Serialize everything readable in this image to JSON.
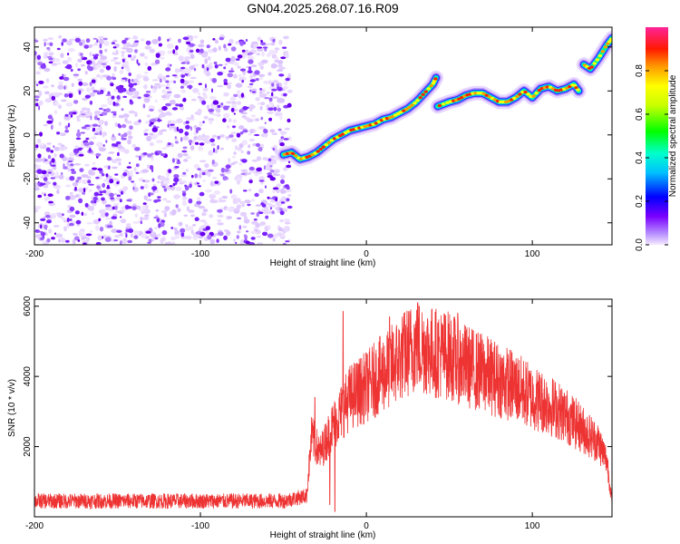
{
  "figure_title": "GN04.2025.268.07.16.R09",
  "chart_data": [
    {
      "type": "heatmap",
      "xlabel": "Height of straight line (km)",
      "ylabel": "Frequency (Hz)",
      "xlim": [
        -200,
        148
      ],
      "ylim": [
        -50,
        49
      ],
      "xticks": [
        -200,
        -100,
        0,
        100
      ],
      "yticks": [
        -40,
        -20,
        0,
        20,
        40
      ],
      "colorbar": {
        "label": "Normalized spectral amplitude",
        "range": [
          0,
          1
        ],
        "ticks": [
          0.0,
          0.2,
          0.4,
          0.6,
          0.8
        ],
        "tick_labels": [
          "0.0",
          "0.2",
          "0.4",
          "0.6",
          "0.8"
        ],
        "colormap": "rainbow (purple-blue-cyan-green-yellow-orange-red-pink)"
      },
      "noise_region_x": [
        -200,
        -46
      ],
      "ridge": [
        {
          "x": -50,
          "y": -9
        },
        {
          "x": -45,
          "y": -8
        },
        {
          "x": -40,
          "y": -11
        },
        {
          "x": -35,
          "y": -10
        },
        {
          "x": -30,
          "y": -8
        },
        {
          "x": -25,
          "y": -5
        },
        {
          "x": -20,
          "y": -2
        },
        {
          "x": -15,
          "y": 0
        },
        {
          "x": -10,
          "y": 2
        },
        {
          "x": -5,
          "y": 3
        },
        {
          "x": 0,
          "y": 4
        },
        {
          "x": 5,
          "y": 5
        },
        {
          "x": 10,
          "y": 7
        },
        {
          "x": 15,
          "y": 8
        },
        {
          "x": 20,
          "y": 10
        },
        {
          "x": 25,
          "y": 12
        },
        {
          "x": 30,
          "y": 15
        },
        {
          "x": 35,
          "y": 19
        },
        {
          "x": 40,
          "y": 23
        },
        {
          "x": 42,
          "y": 26
        },
        {
          "x": 43,
          "y": 13
        },
        {
          "x": 50,
          "y": 15
        },
        {
          "x": 55,
          "y": 16
        },
        {
          "x": 60,
          "y": 18
        },
        {
          "x": 65,
          "y": 19
        },
        {
          "x": 70,
          "y": 19
        },
        {
          "x": 75,
          "y": 17
        },
        {
          "x": 80,
          "y": 15
        },
        {
          "x": 85,
          "y": 15
        },
        {
          "x": 90,
          "y": 17
        },
        {
          "x": 95,
          "y": 20
        },
        {
          "x": 100,
          "y": 17
        },
        {
          "x": 105,
          "y": 21
        },
        {
          "x": 110,
          "y": 22
        },
        {
          "x": 115,
          "y": 20
        },
        {
          "x": 120,
          "y": 21
        },
        {
          "x": 125,
          "y": 23
        },
        {
          "x": 128,
          "y": 20
        },
        {
          "x": 131,
          "y": 32
        },
        {
          "x": 135,
          "y": 30
        },
        {
          "x": 140,
          "y": 35
        },
        {
          "x": 145,
          "y": 41
        },
        {
          "x": 148,
          "y": 44
        }
      ]
    },
    {
      "type": "line",
      "xlabel": "Height of straight line (km)",
      "ylabel": "SNR (10 * v/v)",
      "xlim": [
        -200,
        148
      ],
      "ylim": [
        0,
        6200
      ],
      "xticks": [
        -200,
        -100,
        0,
        100
      ],
      "yticks": [
        2000,
        4000,
        6000
      ],
      "color": "#ee3333",
      "envelope": [
        {
          "x": -200,
          "y": 450
        },
        {
          "x": -150,
          "y": 450
        },
        {
          "x": -100,
          "y": 450
        },
        {
          "x": -50,
          "y": 450
        },
        {
          "x": -36,
          "y": 600
        },
        {
          "x": -33,
          "y": 2300
        },
        {
          "x": -28,
          "y": 1800
        },
        {
          "x": -20,
          "y": 2600
        },
        {
          "x": -10,
          "y": 3400
        },
        {
          "x": 0,
          "y": 3700
        },
        {
          "x": 10,
          "y": 4100
        },
        {
          "x": 20,
          "y": 4500
        },
        {
          "x": 30,
          "y": 4900
        },
        {
          "x": 35,
          "y": 4800
        },
        {
          "x": 40,
          "y": 4700
        },
        {
          "x": 50,
          "y": 4600
        },
        {
          "x": 60,
          "y": 4300
        },
        {
          "x": 70,
          "y": 4100
        },
        {
          "x": 80,
          "y": 3900
        },
        {
          "x": 90,
          "y": 3700
        },
        {
          "x": 100,
          "y": 3400
        },
        {
          "x": 110,
          "y": 3200
        },
        {
          "x": 120,
          "y": 2900
        },
        {
          "x": 130,
          "y": 2500
        },
        {
          "x": 140,
          "y": 2100
        },
        {
          "x": 145,
          "y": 1600
        },
        {
          "x": 148,
          "y": 400
        }
      ],
      "spikes": [
        {
          "x": -31,
          "y": 3400
        },
        {
          "x": -14,
          "y": 5850
        },
        {
          "x": 14,
          "y": 5700
        },
        {
          "x": 31,
          "y": 6100
        },
        {
          "x": 55,
          "y": 5800
        },
        {
          "x": -19,
          "y": 150
        },
        {
          "x": -22,
          "y": 350
        }
      ]
    }
  ]
}
